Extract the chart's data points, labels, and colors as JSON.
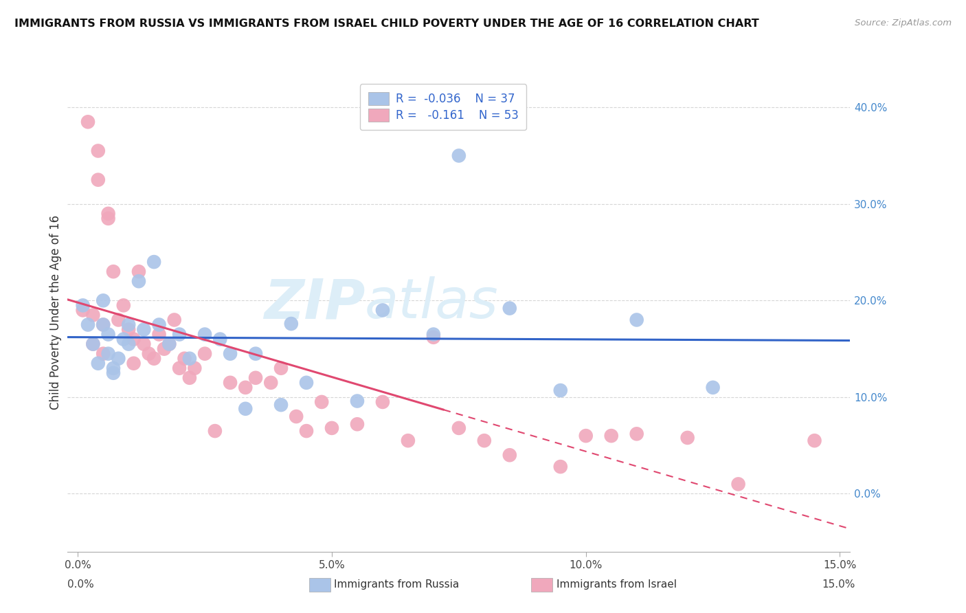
{
  "title": "IMMIGRANTS FROM RUSSIA VS IMMIGRANTS FROM ISRAEL CHILD POVERTY UNDER THE AGE OF 16 CORRELATION CHART",
  "source": "Source: ZipAtlas.com",
  "ylabel": "Child Poverty Under the Age of 16",
  "xlabel_vals": [
    0.0,
    0.05,
    0.1,
    0.15
  ],
  "ylabel_vals": [
    0.0,
    0.1,
    0.2,
    0.3,
    0.4
  ],
  "xlim": [
    -0.002,
    0.152
  ],
  "ylim": [
    -0.06,
    0.435
  ],
  "russia_color": "#aac4e8",
  "israel_color": "#f0a8bc",
  "russia_line_color": "#3264c8",
  "israel_line_color": "#e04870",
  "russia_x": [
    0.001,
    0.002,
    0.003,
    0.004,
    0.005,
    0.005,
    0.006,
    0.006,
    0.007,
    0.007,
    0.008,
    0.009,
    0.01,
    0.01,
    0.012,
    0.013,
    0.015,
    0.016,
    0.018,
    0.02,
    0.022,
    0.025,
    0.028,
    0.03,
    0.033,
    0.035,
    0.04,
    0.042,
    0.045,
    0.055,
    0.06,
    0.07,
    0.075,
    0.085,
    0.095,
    0.11,
    0.125
  ],
  "russia_y": [
    0.195,
    0.175,
    0.155,
    0.135,
    0.175,
    0.2,
    0.165,
    0.145,
    0.125,
    0.13,
    0.14,
    0.16,
    0.155,
    0.175,
    0.22,
    0.17,
    0.24,
    0.175,
    0.155,
    0.165,
    0.14,
    0.165,
    0.16,
    0.145,
    0.088,
    0.145,
    0.092,
    0.176,
    0.115,
    0.096,
    0.19,
    0.165,
    0.35,
    0.192,
    0.107,
    0.18,
    0.11
  ],
  "israel_x": [
    0.001,
    0.002,
    0.003,
    0.003,
    0.004,
    0.004,
    0.005,
    0.005,
    0.006,
    0.006,
    0.007,
    0.008,
    0.009,
    0.01,
    0.011,
    0.011,
    0.012,
    0.013,
    0.014,
    0.015,
    0.016,
    0.017,
    0.018,
    0.019,
    0.02,
    0.021,
    0.022,
    0.023,
    0.025,
    0.027,
    0.03,
    0.033,
    0.035,
    0.038,
    0.04,
    0.043,
    0.045,
    0.048,
    0.05,
    0.055,
    0.06,
    0.065,
    0.07,
    0.075,
    0.08,
    0.085,
    0.095,
    0.1,
    0.105,
    0.11,
    0.12,
    0.13,
    0.145
  ],
  "israel_y": [
    0.19,
    0.385,
    0.155,
    0.185,
    0.355,
    0.325,
    0.175,
    0.145,
    0.29,
    0.285,
    0.23,
    0.18,
    0.195,
    0.17,
    0.16,
    0.135,
    0.23,
    0.155,
    0.145,
    0.14,
    0.165,
    0.15,
    0.155,
    0.18,
    0.13,
    0.14,
    0.12,
    0.13,
    0.145,
    0.065,
    0.115,
    0.11,
    0.12,
    0.115,
    0.13,
    0.08,
    0.065,
    0.095,
    0.068,
    0.072,
    0.095,
    0.055,
    0.162,
    0.068,
    0.055,
    0.04,
    0.028,
    0.06,
    0.06,
    0.062,
    0.058,
    0.01,
    0.055
  ],
  "background_color": "#ffffff",
  "grid_color": "#cccccc",
  "watermark_zip": "ZIP",
  "watermark_atlas": "atlas",
  "watermark_color": "#ddeef8"
}
